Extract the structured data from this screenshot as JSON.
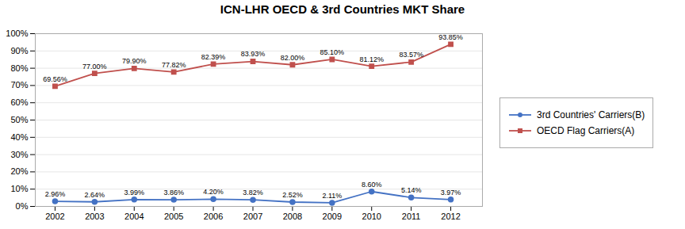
{
  "chart_data": {
    "type": "line",
    "title": "ICN-LHR OECD & 3rd Countries MKT Share",
    "x": [
      2002,
      2003,
      2004,
      2005,
      2006,
      2007,
      2008,
      2009,
      2010,
      2011,
      2012
    ],
    "series": [
      {
        "name": "3rd Countries' Carriers(B)",
        "color": "#4472C4",
        "marker": "circle",
        "values": [
          2.96,
          2.64,
          3.99,
          3.86,
          4.2,
          3.82,
          2.52,
          2.11,
          8.6,
          5.14,
          3.97
        ],
        "value_labels": [
          "2.96%",
          "2.64%",
          "3.99%",
          "3.86%",
          "4.20%",
          "3.82%",
          "2.52%",
          "2.11%",
          "8.60%",
          "5.14%",
          "3.97%"
        ]
      },
      {
        "name": "OECD Flag Carriers(A)",
        "color": "#C0504D",
        "marker": "square",
        "values": [
          69.56,
          77.0,
          79.9,
          77.82,
          82.39,
          83.93,
          82.0,
          85.1,
          81.12,
          83.57,
          93.85
        ],
        "value_labels": [
          "69.56%",
          "77.00%",
          "79.90%",
          "77.82%",
          "82.39%",
          "83.93%",
          "82.00%",
          "85.10%",
          "81.12%",
          "83.57%",
          "93.85%"
        ]
      }
    ],
    "xlim": [
      2001.5,
      2012.8
    ],
    "xticks": [
      2002,
      2003,
      2004,
      2005,
      2006,
      2007,
      2008,
      2009,
      2010,
      2011,
      2012
    ],
    "ylim": [
      0,
      100
    ],
    "yticks": [
      {
        "value": 0,
        "label": "0%"
      },
      {
        "value": 10,
        "label": "10%"
      },
      {
        "value": 20,
        "label": "20%"
      },
      {
        "value": 30,
        "label": "30%"
      },
      {
        "value": 40,
        "label": "40%"
      },
      {
        "value": 50,
        "label": "50%"
      },
      {
        "value": 60,
        "label": "60%"
      },
      {
        "value": 70,
        "label": "70%"
      },
      {
        "value": 80,
        "label": "80%"
      },
      {
        "value": 90,
        "label": "90%"
      },
      {
        "value": 100,
        "label": "100%"
      }
    ],
    "grid": true,
    "legend": "right",
    "data_labels": true
  }
}
